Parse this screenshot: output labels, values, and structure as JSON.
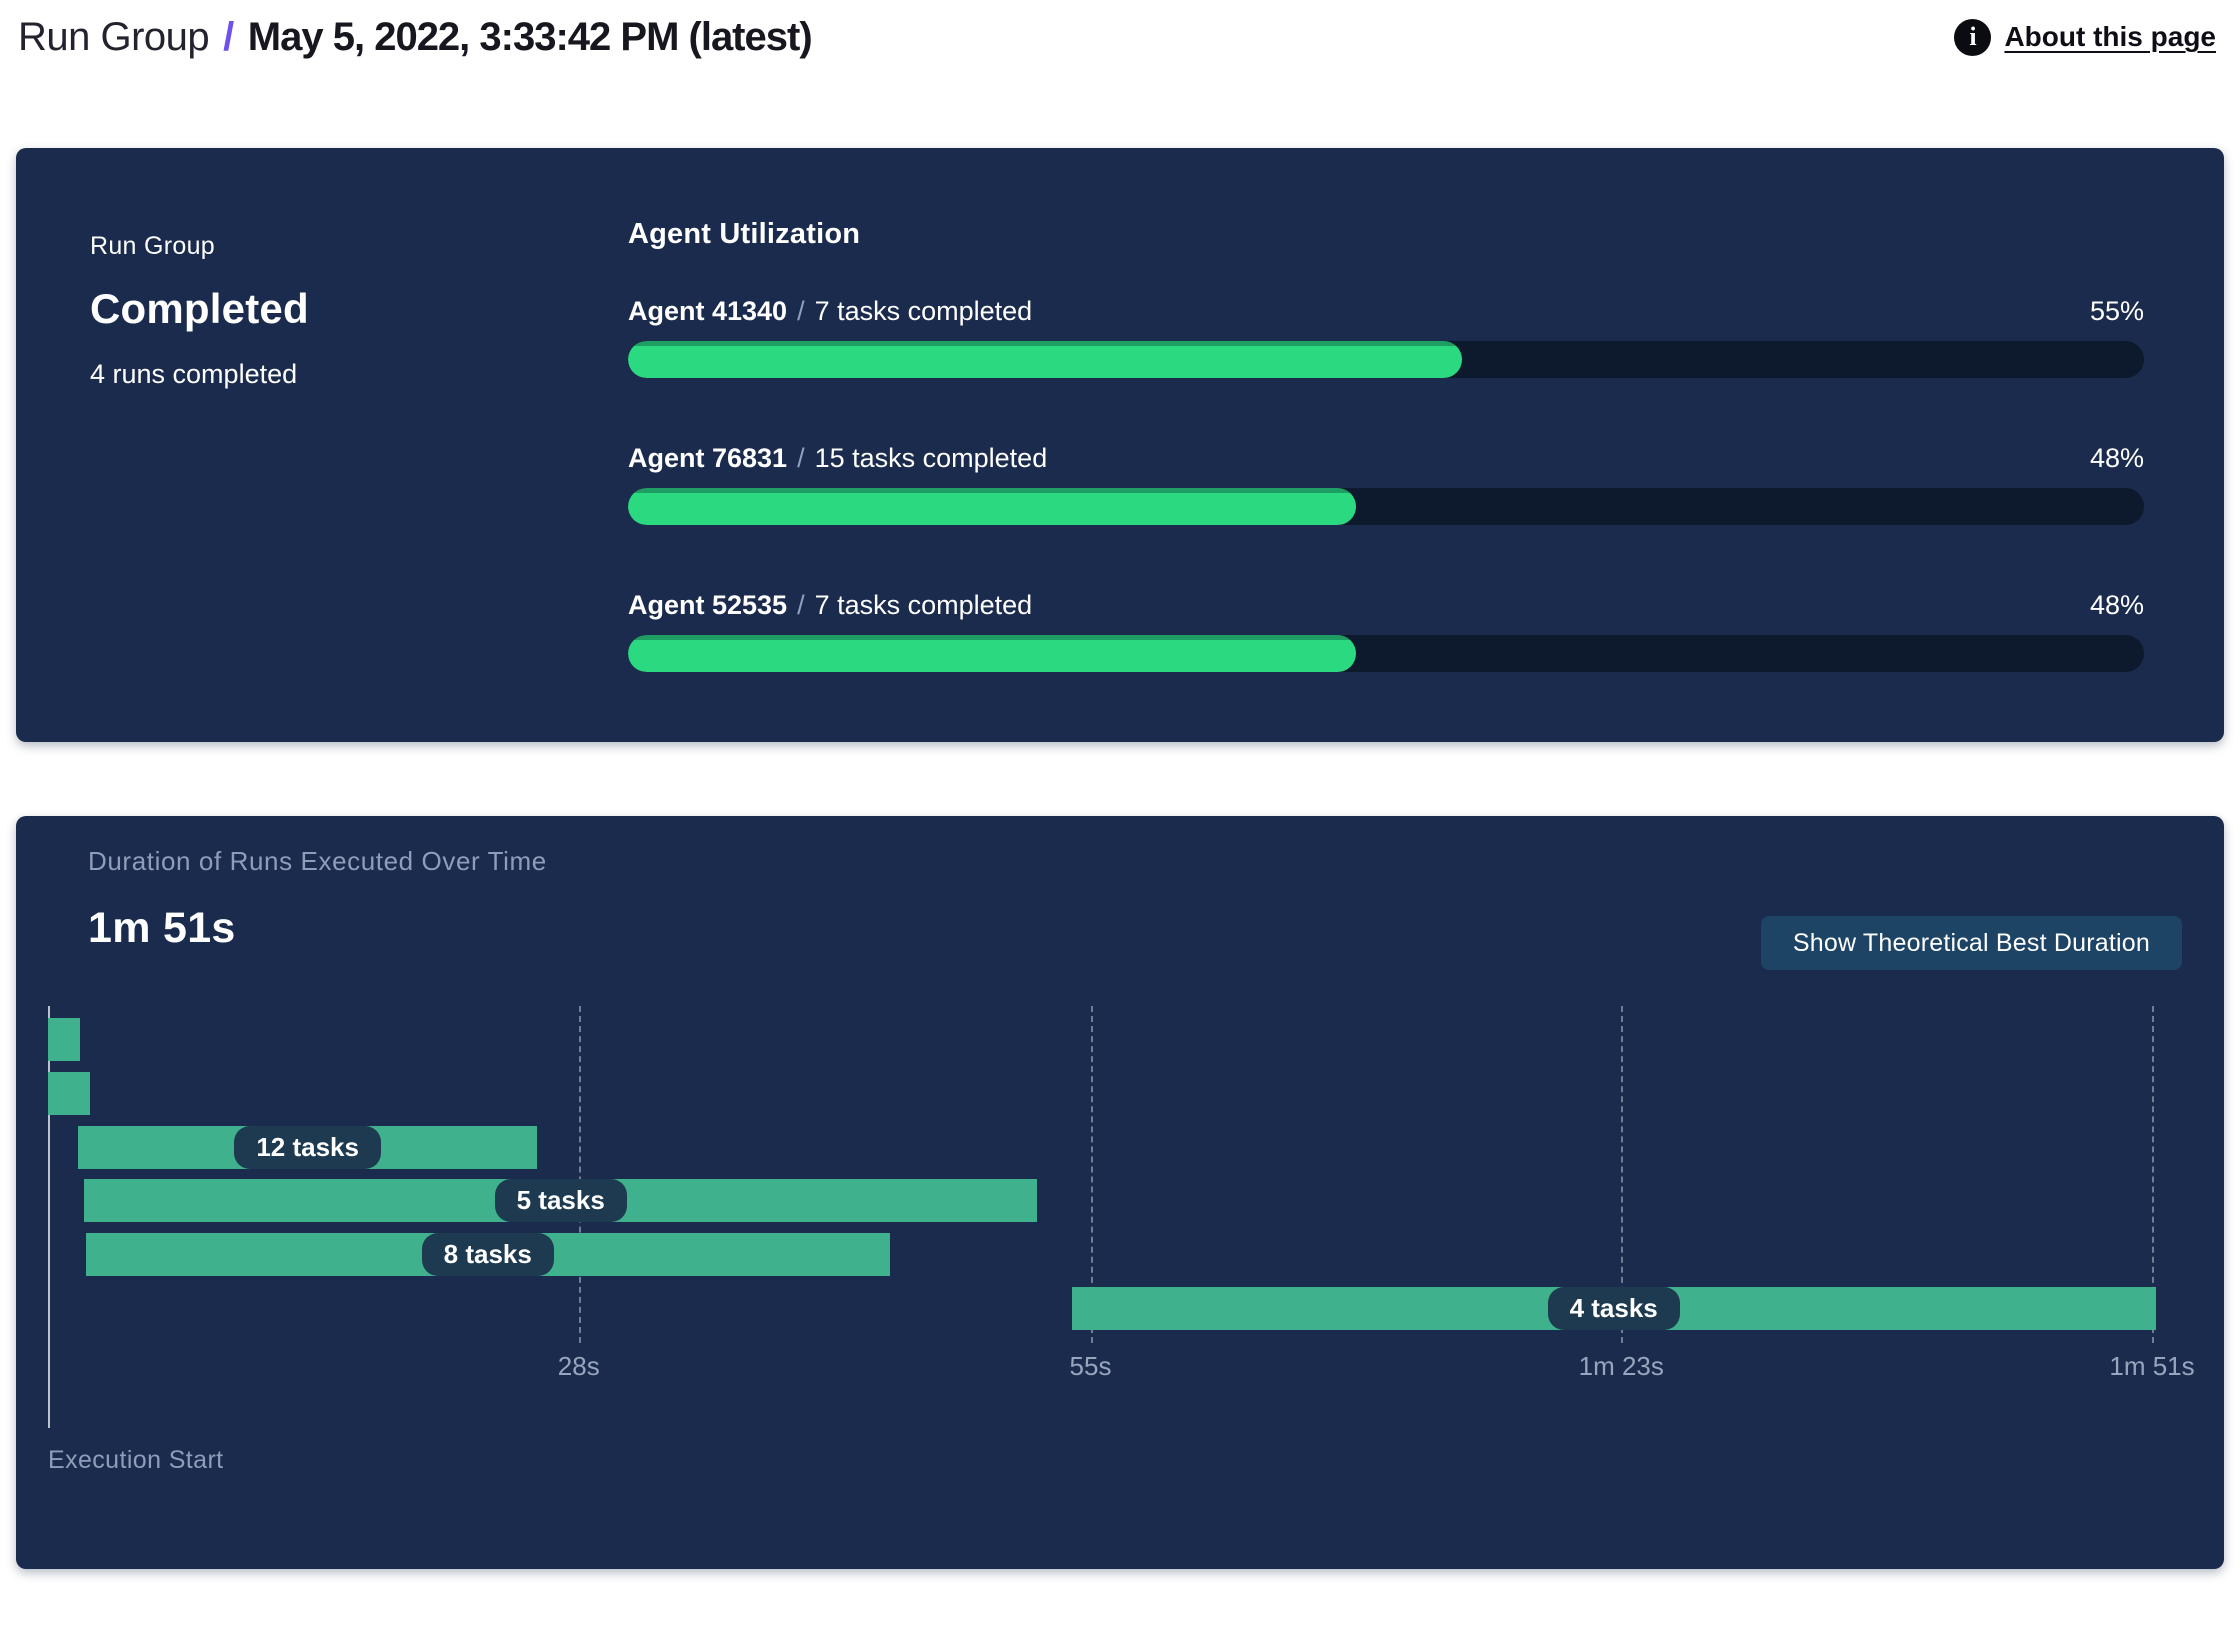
{
  "header": {
    "breadcrumb_root": "Run Group",
    "breadcrumb_separator": "/",
    "title": "May 5, 2022, 3:33:42 PM (latest)",
    "info_icon_glyph": "i",
    "about_link": "About this page"
  },
  "summary_panel": {
    "group_label": "Run Group",
    "status": "Completed",
    "runs_completed": "4 runs completed",
    "agent_utilization": {
      "heading": "Agent Utilization",
      "separator": "/",
      "agents": [
        {
          "name": "Agent 41340",
          "tasks": "7 tasks completed",
          "percent_label": "55%",
          "percent_value": 55
        },
        {
          "name": "Agent 76831",
          "tasks": "15 tasks completed",
          "percent_label": "48%",
          "percent_value": 48
        },
        {
          "name": "Agent 52535",
          "tasks": "7 tasks completed",
          "percent_label": "48%",
          "percent_value": 48
        }
      ]
    }
  },
  "duration_panel": {
    "title": "Duration of Runs Executed Over Time",
    "total_duration": "1m 51s",
    "button_label": "Show Theoretical Best Duration",
    "axis_label": "Execution Start"
  },
  "chart_data": {
    "type": "gantt",
    "title": "Duration of Runs Executed Over Time",
    "total_duration_label": "1m 51s",
    "x_axis": {
      "label": "Execution Start",
      "range_s": [
        0,
        111
      ],
      "grid": "dashed-vertical",
      "ticks": [
        {
          "t": 28,
          "label": "28s"
        },
        {
          "t": 55,
          "label": "55s"
        },
        {
          "t": 83,
          "label": "1m 23s"
        },
        {
          "t": 111,
          "label": "1m 51s"
        }
      ]
    },
    "bars": [
      {
        "start_s": 0.0,
        "end_s": 1.7,
        "label": ""
      },
      {
        "start_s": 0.0,
        "end_s": 2.2,
        "label": ""
      },
      {
        "start_s": 1.6,
        "end_s": 25.8,
        "label": "12 tasks"
      },
      {
        "start_s": 1.9,
        "end_s": 52.2,
        "label": "5 tasks"
      },
      {
        "start_s": 2.0,
        "end_s": 44.4,
        "label": "8 tasks"
      },
      {
        "start_s": 54.0,
        "end_s": 111.2,
        "label": "4 tasks"
      }
    ]
  },
  "colors": {
    "panel_bg": "#1b2b4d",
    "progress_fill": "#2bd980",
    "progress_track": "#0d1a2d",
    "gantt_bar": "#3fb18c",
    "accent_slash": "#6e50f0",
    "button_bg": "#1d4365",
    "label_pill_bg": "#1d3a50"
  }
}
